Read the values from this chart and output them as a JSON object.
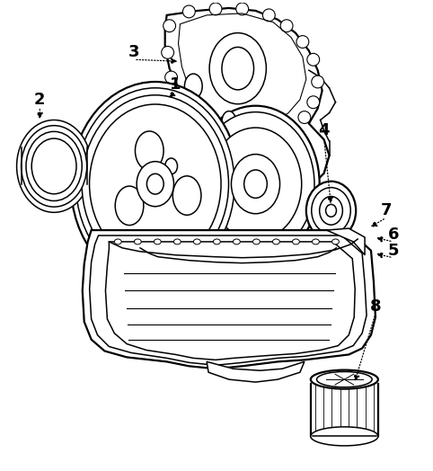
{
  "background_color": "#ffffff",
  "line_color": "#000000",
  "fig_width": 4.82,
  "fig_height": 5.24,
  "dpi": 100,
  "lw": 1.1,
  "lw_thick": 1.6
}
